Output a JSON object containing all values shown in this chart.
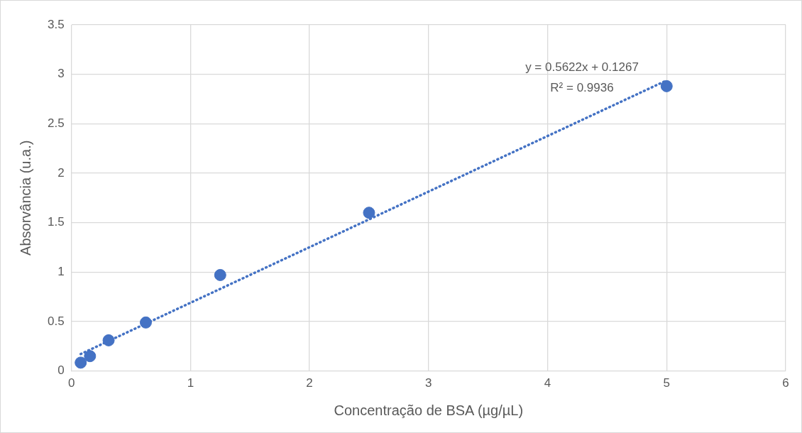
{
  "chart_data": {
    "type": "scatter",
    "xlabel": "Concentração de BSA (µg/µL)",
    "ylabel": "Absorvância (u.a.)",
    "annotations": [
      "y = 0.5622x + 0.1267",
      "R² = 0.9936"
    ],
    "series": [
      {
        "color": "#4472c4",
        "marker": "circle",
        "x": [
          0.078,
          0.156,
          0.3125,
          0.625,
          1.25,
          2.5,
          5
        ],
        "values": [
          0.084,
          0.15,
          0.31,
          0.49,
          0.97,
          1.6,
          2.88
        ]
      },
      {
        "type": "line",
        "color": "#4472c4",
        "marker": "none",
        "line_style": "dotted",
        "x": [
          0.078,
          5
        ],
        "values": [
          0.171,
          2.938
        ]
      }
    ],
    "xlim": [
      0,
      6
    ],
    "xticks": [
      0,
      1,
      2,
      3,
      4,
      5,
      6
    ],
    "ylim": [
      0,
      3.5
    ],
    "yticks": [
      0,
      0.5,
      1,
      1.5,
      2,
      2.5,
      3,
      3.5
    ],
    "grid": true,
    "legend": false
  }
}
